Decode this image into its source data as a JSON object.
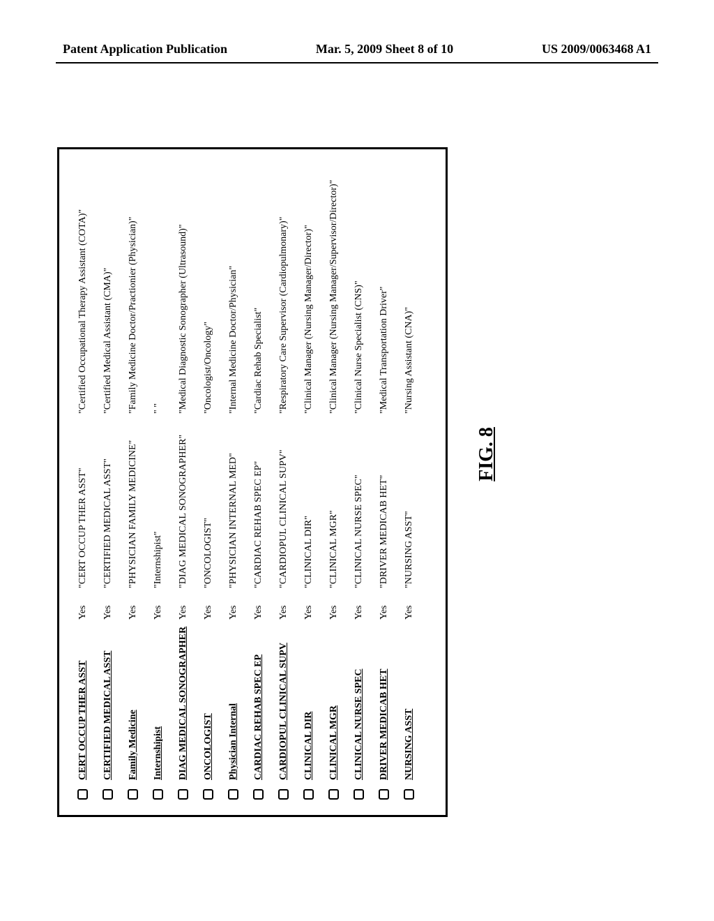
{
  "header": {
    "left": "Patent Application Publication",
    "center": "Mar. 5, 2009  Sheet 8 of 10",
    "right": "US 2009/0063468 A1"
  },
  "figure_label": "FIG. 8",
  "columns": {
    "checkbox": "",
    "title": "",
    "yes": "",
    "code": "",
    "desc": ""
  },
  "rows": [
    {
      "title": "CERT OCCUP THER ASST",
      "yes": "Yes",
      "code": "\"CERT OCCUP THER ASST\"",
      "desc": "\"Certified Occupational Therapy Assistant (COTA)\""
    },
    {
      "title": "CERTIFIED MEDICAL ASST",
      "yes": "Yes",
      "code": "\"CERTIFIED MEDICAL ASST\"",
      "desc": "\"Certified Medical Assistant (CMA)\""
    },
    {
      "title": "Family Medicine",
      "yes": "Yes",
      "code": "\"PHYSICIAN FAMILY MEDICINE\"",
      "desc": "\"Family Medicine Doctor/Practionier (Physician)\""
    },
    {
      "title": "Internshipist",
      "yes": "Yes",
      "code": "\"Internshipist\"",
      "desc": "\" \""
    },
    {
      "title": "DIAG MEDICAL SONOGRAPHER",
      "yes": "Yes",
      "code": "\"DIAG MEDICAL SONOGRAPHER\"",
      "desc": "\"Medical Diagnostic Sonographer (Ultrasound)\""
    },
    {
      "title": "ONCOLOGIST",
      "yes": "Yes",
      "code": "\"ONCOLOGIST\"",
      "desc": "\"Oncologist/Oncology\""
    },
    {
      "title": "Physician Internal",
      "yes": "Yes",
      "code": "\"PHYSICIAN INTERNAL MED\"",
      "desc": "\"Internal Medicine Doctor/Physician\""
    },
    {
      "title": "CARDIAC REHAB SPEC EP",
      "yes": "Yes",
      "code": "\"CARDIAC REHAB SPEC EP\"",
      "desc": "\"Cardiac Rehab Specialist\""
    },
    {
      "title": "CARDIOPUL CLINICAL SUPV",
      "yes": "Yes",
      "code": "\"CARDIOPUL CLINICAL SUPV\"",
      "desc": "\"Respiratory Care Supervisor (Cardiopulmonary)\""
    },
    {
      "title": "CLINICAL DIR",
      "yes": "Yes",
      "code": "\"CLINICAL DIR\"",
      "desc": "\"Clinical Manager (Nursing Manager/Director)\""
    },
    {
      "title": "CLINICAL MGR",
      "yes": "Yes",
      "code": "\"CLINICAL MGR\"",
      "desc": "\"Clinical Manager (Nursing Manager/Supervisor/Director)\""
    },
    {
      "title": "CLINICAL NURSE SPEC",
      "yes": "Yes",
      "code": "\"CLINICAL NURSE SPEC\"",
      "desc": "\"Clinical Nurse Specialist (CNS)\""
    },
    {
      "title": "DRIVER MEDICAB HET",
      "yes": "Yes",
      "code": "\"DRIVER MEDICAB HET\"",
      "desc": "\"Medical Transportation Driver\""
    },
    {
      "title": "NURSING ASST",
      "yes": "Yes",
      "code": "\"NURSING ASST\"",
      "desc": "\"Nursing Assistant (CNA)\""
    }
  ]
}
